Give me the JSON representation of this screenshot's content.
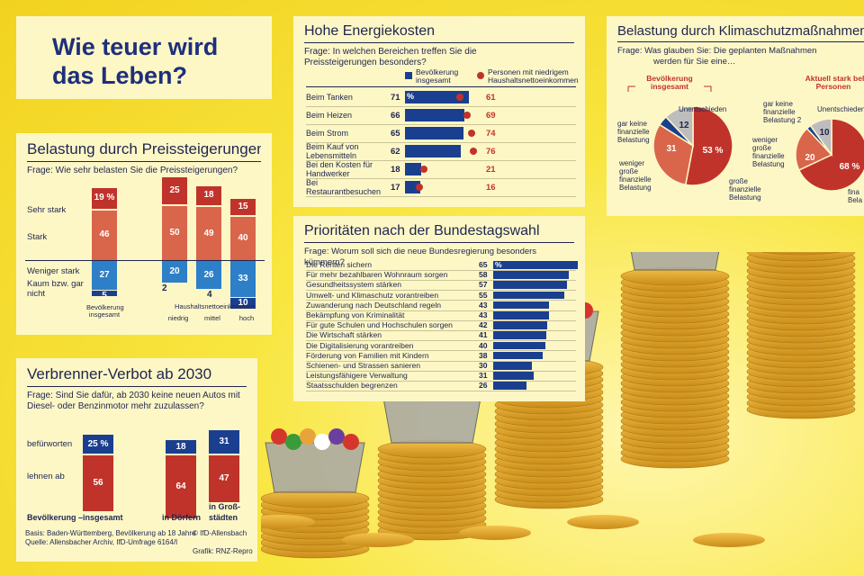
{
  "main_title": "Wie teuer wird das Leben?",
  "colors": {
    "navy": "#1b3f8f",
    "red": "#c0332b",
    "salmon": "#d9654a",
    "lightblue": "#2d7fc7",
    "grey": "#bdbdbd",
    "panel": "#fdf7c6"
  },
  "belastung": {
    "title": "Belastung durch Preissteigerungen",
    "question": "Frage: Wie sehr belasten Sie die Preissteigerungen?",
    "row_labels": [
      "Sehr stark",
      "Stark",
      "Weniger stark",
      "Kaum bzw. gar nicht"
    ],
    "group_label": "Haushaltsnettoeinkommen",
    "chart_data": {
      "type": "bar",
      "categories": [
        "Bevölkerung insgesamt",
        "niedrig",
        "mittel",
        "hoch"
      ],
      "series": [
        {
          "name": "Sehr stark",
          "values": [
            19,
            25,
            18,
            15
          ]
        },
        {
          "name": "Stark",
          "values": [
            46,
            50,
            49,
            40
          ]
        },
        {
          "name": "Weniger stark",
          "values": [
            27,
            20,
            26,
            33
          ]
        },
        {
          "name": "Kaum bzw. gar nicht",
          "values": [
            5,
            2,
            4,
            10
          ]
        }
      ],
      "pct_label": "19 %"
    }
  },
  "verbrenner": {
    "title": "Verbrenner-Verbot ab 2030",
    "question": "Frage: Sind Sie dafür, ab 2030 keine neuen Autos mit Diesel- oder Benzinmotor mehr zuzulassen?",
    "row_labels": [
      "befürworten",
      "lehnen ab"
    ],
    "chart_data": {
      "type": "bar",
      "categories": [
        "Bevölkerung – insgesamt",
        "in Dörfern",
        "in Großstädten"
      ],
      "series": [
        {
          "name": "befürworten",
          "values": [
            25,
            18,
            31
          ]
        },
        {
          "name": "lehnen ab",
          "values": [
            56,
            64,
            47
          ]
        }
      ],
      "pct_label": "25 %"
    },
    "cat_labels": [
      "Bevölkerung –",
      "insgesamt",
      "in Dörfern",
      "in Groß-",
      "städten"
    ],
    "basis": "Basis: Baden-Württemberg, Bevölkerung ab 18 Jahre",
    "quelle": "Quelle: Allensbacher Archiv, IfD-Umfrage 6164/I",
    "copyright": "© IfD-Allensbach",
    "grafik": "Grafik: RNZ-Repro"
  },
  "energie": {
    "title": "Hohe Energiekosten",
    "question": "Frage: In welchen Bereichen treffen Sie die Preissteigerungen besonders?",
    "legend": [
      "Bevölkerung insgesamt",
      "Personen mit niedrigem Haushaltsnettoeinkommen"
    ],
    "chart_data": {
      "type": "bar",
      "categories": [
        "Beim Tanken",
        "Beim Heizen",
        "Beim Strom",
        "Beim Kauf von Lebensmitteln",
        "Bei den Kosten für Handwerker",
        "Bei Restaurantbesuchen"
      ],
      "series": [
        {
          "name": "Bevölkerung insgesamt",
          "values": [
            71,
            66,
            65,
            62,
            18,
            17
          ]
        },
        {
          "name": "Personen mit niedrigem Haushaltsnettoeinkommen",
          "values": [
            61,
            69,
            74,
            76,
            21,
            16
          ]
        }
      ],
      "pct_label": "%"
    }
  },
  "prioritaeten": {
    "title": "Prioritäten nach der Bundestagswahl",
    "question": "Frage: Worum soll sich die neue Bundesregierung besonders kümmern?",
    "chart_data": {
      "type": "bar",
      "categories": [
        "Die Renten sichern",
        "Für mehr bezahlbaren Wohnraum sorgen",
        "Gesundheitssystem stärken",
        "Umwelt- und Klimaschutz vorantreiben",
        "Zuwanderung nach Deutschland regeln",
        "Bekämpfung von Kriminalität",
        "Für gute Schulen und Hochschulen sorgen",
        "Die Wirtschaft stärken",
        "Die Digitalisierung vorantreiben",
        "Förderung von Familien mit Kindern",
        "Schienen- und Strassen sanieren",
        "Leistungsfähigere Verwaltung",
        "Staatsschulden begrenzen"
      ],
      "values": [
        65,
        58,
        57,
        55,
        43,
        43,
        42,
        41,
        40,
        38,
        30,
        31,
        26
      ],
      "pct_label": "%"
    }
  },
  "klima": {
    "title": "Belastung durch Klimaschutzmaßnahmen",
    "question_1": "Frage: Was glauben Sie: Die geplanten Maßnahmen",
    "question_2": "werden für Sie eine…",
    "group1_1": "Bevölkerung",
    "group1_2": "insgesamt",
    "group2_1": "Aktuell stark belaste",
    "group2_2": "Personen",
    "chart_data": [
      {
        "type": "pie",
        "categories": [
          "große finanzielle Belastung",
          "weniger große finanzielle Belastung",
          "gar keine finanzielle Belastung",
          "Unentschieden"
        ],
        "values": [
          53,
          31,
          4,
          12
        ],
        "pct_label": "53 %"
      },
      {
        "type": "pie",
        "categories": [
          "große finanzielle Belastung",
          "weniger große finanzielle Belastung",
          "gar keine finanzielle Belastung",
          "Unentschieden"
        ],
        "values": [
          68,
          20,
          2,
          10
        ],
        "pct_label": "68 %"
      }
    ],
    "pie1_labels": {
      "unent": "Unentschieden",
      "gar": [
        "gar keine",
        "finanzielle",
        "Belastung"
      ],
      "weniger": [
        "weniger",
        "große",
        "finanzielle",
        "Belastung"
      ],
      "gross": [
        "große",
        "finanzielle",
        "Belastung"
      ]
    },
    "pie2_labels": {
      "unent": "Unentschieden",
      "gar": [
        "gar keine",
        "finanzielle",
        "Belastung 2"
      ],
      "weniger": [
        "weniger",
        "große",
        "finanzielle",
        "Belastung"
      ],
      "gross": [
        "fina",
        "Bela"
      ]
    }
  }
}
